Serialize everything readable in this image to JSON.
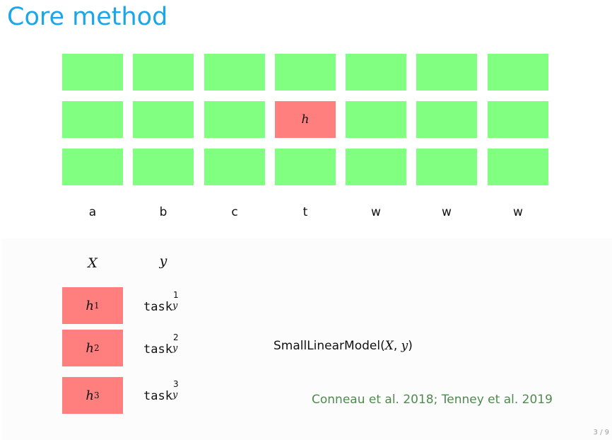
{
  "title": "Core method",
  "grid": {
    "rows": 3,
    "tokens": [
      "a",
      "b",
      "c",
      "t",
      "w",
      "w",
      "w"
    ],
    "highlight": {
      "row": 1,
      "col": 3,
      "label": "h"
    },
    "colors": {
      "normal": "#80ff80",
      "highlight": "#ff7f7f"
    }
  },
  "probe": {
    "x_header": "X",
    "y_header": "y",
    "rows": [
      {
        "h_base": "h",
        "h_index": "1",
        "task_base": "task",
        "task_sup": "1",
        "task_sub": "y"
      },
      {
        "h_base": "h",
        "h_index": "2",
        "task_base": "task",
        "task_sup": "2",
        "task_sub": "y"
      },
      {
        "h_base": "h",
        "h_index": "3",
        "task_base": "task",
        "task_sup": "3",
        "task_sub": "y"
      }
    ]
  },
  "model": {
    "name": "SmallLinearModel(",
    "arg_x": "X",
    "sep": ", ",
    "arg_y": "y",
    "close": ")"
  },
  "citation": "Conneau et al. 2018; Tenney et al. 2019",
  "page_number": "3 / 9",
  "colors": {
    "title": "#1aa6e8",
    "citation": "#4e8a4e"
  }
}
